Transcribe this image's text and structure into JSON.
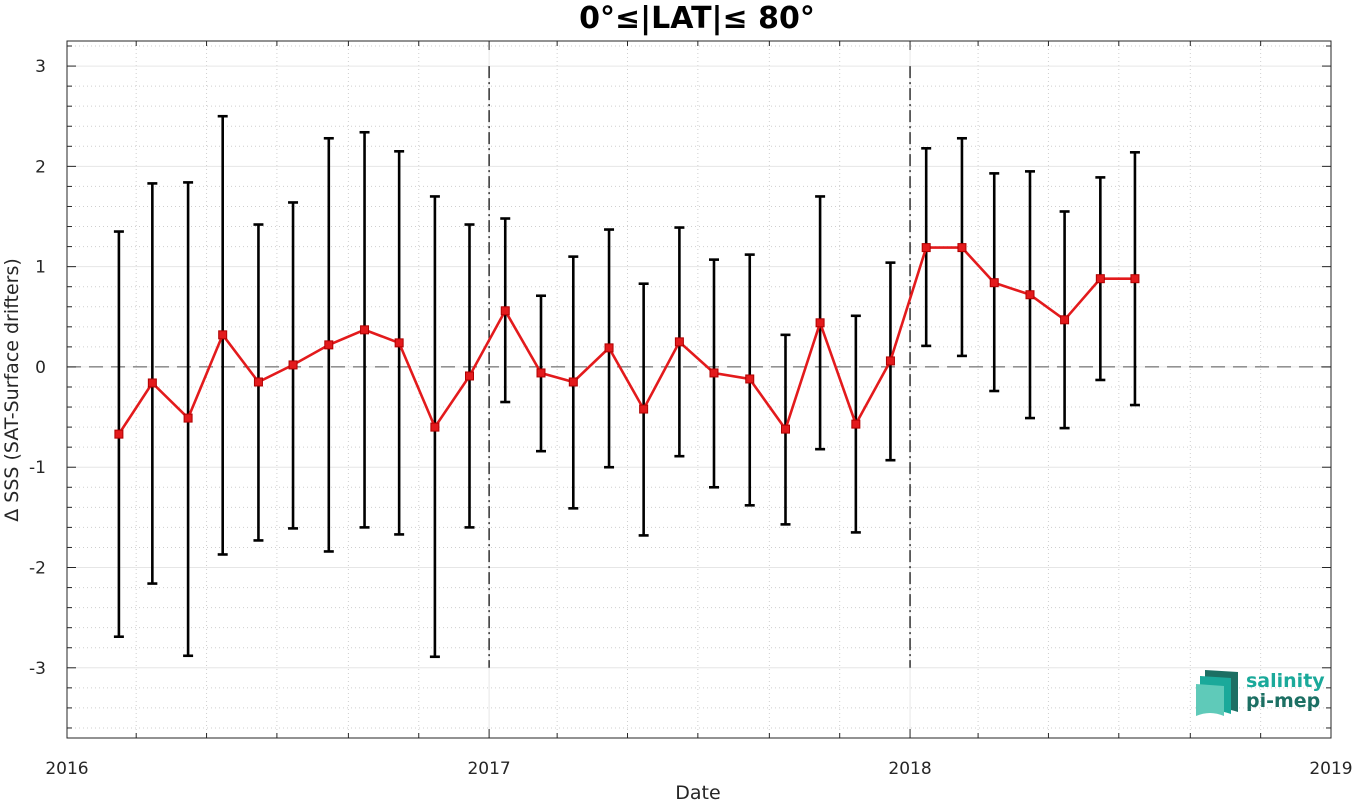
{
  "chart_data": {
    "type": "line",
    "title": "0°≤|LAT|≤ 80°",
    "xlabel": "Date",
    "ylabel": "Δ SSS (SAT-Surface drifters)",
    "xlim": [
      "2016-01-01",
      "2019-01-01"
    ],
    "ylim": [
      -3.7,
      3.25
    ],
    "x_ticks": [
      "2016",
      "2017",
      "2018",
      "2019"
    ],
    "y_ticks": [
      "3",
      "2",
      "1",
      "0",
      "-1",
      "-2",
      "-3"
    ],
    "grid": true,
    "reference_line_y": 0,
    "year_separators": [
      "2017-01-01",
      "2018-01-01"
    ],
    "series": [
      {
        "color": "#e31a1c",
        "error_bar_color": "#000000",
        "points": [
          {
            "date": "2016-02-15",
            "value": -0.67,
            "lower": -2.69,
            "upper": 1.35
          },
          {
            "date": "2016-03-15",
            "value": -0.16,
            "lower": -2.16,
            "upper": 1.83
          },
          {
            "date": "2016-04-15",
            "value": -0.51,
            "lower": -2.88,
            "upper": 1.84
          },
          {
            "date": "2016-05-15",
            "value": 0.32,
            "lower": -1.87,
            "upper": 2.5
          },
          {
            "date": "2016-06-15",
            "value": -0.15,
            "lower": -1.73,
            "upper": 1.42
          },
          {
            "date": "2016-07-15",
            "value": 0.02,
            "lower": -1.61,
            "upper": 1.64
          },
          {
            "date": "2016-08-15",
            "value": 0.22,
            "lower": -1.84,
            "upper": 2.28
          },
          {
            "date": "2016-09-15",
            "value": 0.37,
            "lower": -1.6,
            "upper": 2.34
          },
          {
            "date": "2016-10-15",
            "value": 0.24,
            "lower": -1.67,
            "upper": 2.15
          },
          {
            "date": "2016-11-15",
            "value": -0.6,
            "lower": -2.89,
            "upper": 1.7
          },
          {
            "date": "2016-12-15",
            "value": -0.09,
            "lower": -1.6,
            "upper": 1.42
          },
          {
            "date": "2017-01-15",
            "value": 0.56,
            "lower": -0.35,
            "upper": 1.48
          },
          {
            "date": "2017-02-15",
            "value": -0.06,
            "lower": -0.84,
            "upper": 0.71
          },
          {
            "date": "2017-03-15",
            "value": -0.15,
            "lower": -1.41,
            "upper": 1.1
          },
          {
            "date": "2017-04-15",
            "value": 0.19,
            "lower": -1.0,
            "upper": 1.37
          },
          {
            "date": "2017-05-15",
            "value": -0.42,
            "lower": -1.68,
            "upper": 0.83
          },
          {
            "date": "2017-06-15",
            "value": 0.25,
            "lower": -0.89,
            "upper": 1.39
          },
          {
            "date": "2017-07-15",
            "value": -0.06,
            "lower": -1.2,
            "upper": 1.07
          },
          {
            "date": "2017-08-15",
            "value": -0.12,
            "lower": -1.38,
            "upper": 1.12
          },
          {
            "date": "2017-09-15",
            "value": -0.62,
            "lower": -1.57,
            "upper": 0.32
          },
          {
            "date": "2017-10-15",
            "value": 0.44,
            "lower": -0.82,
            "upper": 1.7
          },
          {
            "date": "2017-11-15",
            "value": -0.57,
            "lower": -1.65,
            "upper": 0.51
          },
          {
            "date": "2017-12-15",
            "value": 0.06,
            "lower": -0.93,
            "upper": 1.04
          },
          {
            "date": "2018-01-15",
            "value": 1.19,
            "lower": 0.21,
            "upper": 2.18
          },
          {
            "date": "2018-02-15",
            "value": 1.19,
            "lower": 0.11,
            "upper": 2.28
          },
          {
            "date": "2018-03-15",
            "value": 0.84,
            "lower": -0.24,
            "upper": 1.93
          },
          {
            "date": "2018-04-15",
            "value": 0.72,
            "lower": -0.51,
            "upper": 1.95
          },
          {
            "date": "2018-05-15",
            "value": 0.47,
            "lower": -0.61,
            "upper": 1.55
          },
          {
            "date": "2018-06-15",
            "value": 0.88,
            "lower": -0.13,
            "upper": 1.89
          },
          {
            "date": "2018-07-15",
            "value": 0.88,
            "lower": -0.38,
            "upper": 2.14
          }
        ]
      }
    ]
  },
  "logo": {
    "line1": "salinity",
    "line2": "pi-mep",
    "icon": "wave-layers-icon",
    "color1": "#1aa99a",
    "color2": "#1c6f63"
  }
}
